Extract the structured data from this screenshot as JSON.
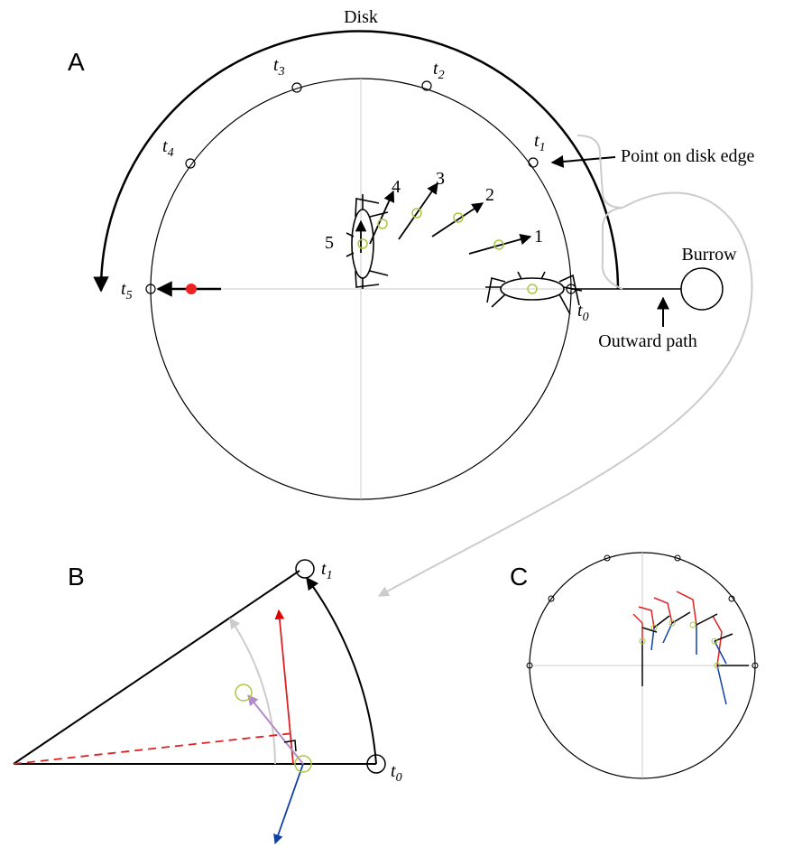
{
  "panel_a": {
    "label": "A",
    "disk_label": "Disk",
    "time_labels": [
      {
        "t": "t",
        "sub": "0"
      },
      {
        "t": "t",
        "sub": "1"
      },
      {
        "t": "t",
        "sub": "2"
      },
      {
        "t": "t",
        "sub": "3"
      },
      {
        "t": "t",
        "sub": "4"
      },
      {
        "t": "t",
        "sub": "5"
      }
    ],
    "point_label": "Point on disk edge",
    "burrow_label": "Burrow",
    "path_label": "Outward path",
    "step_labels": [
      "1",
      "2",
      "3",
      "4",
      "5"
    ]
  },
  "panel_b": {
    "label": "B",
    "time_labels": [
      {
        "t": "t",
        "sub": "0"
      },
      {
        "t": "t",
        "sub": "1"
      }
    ]
  },
  "panel_c": {
    "label": "C"
  }
}
